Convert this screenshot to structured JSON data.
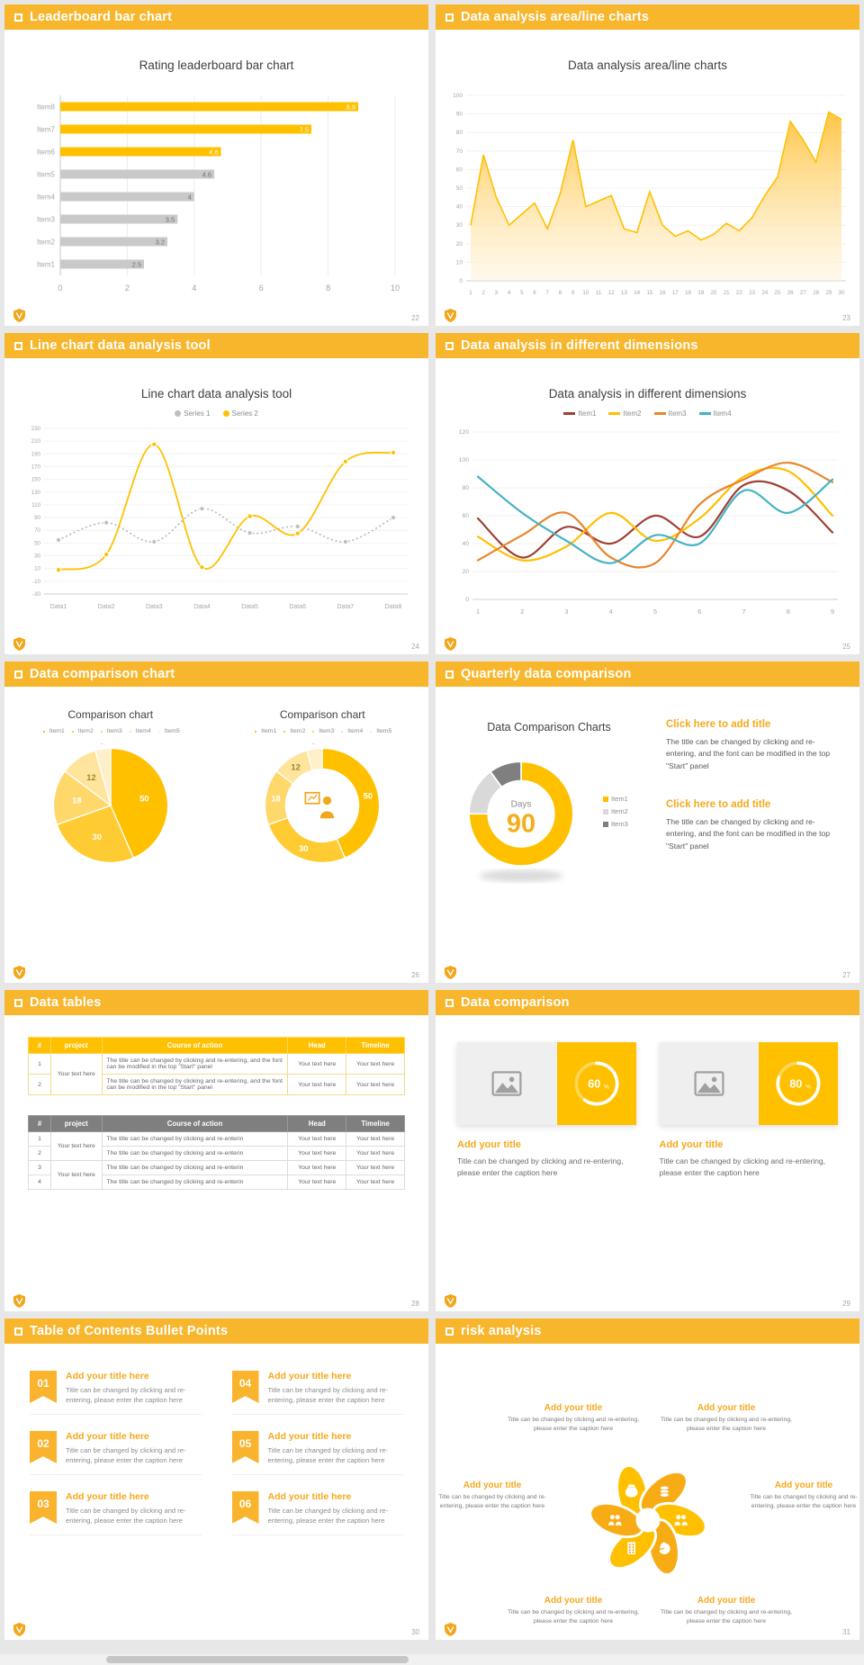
{
  "colors": {
    "accent": "#F8B62D",
    "accent_dark": "#F2A71B",
    "chart_yellow": "#FFC000",
    "bar_gray": "#C9C9C9",
    "dark_gray": "#7F7F7F",
    "light_gray": "#D9D9D9"
  },
  "slides": [
    {
      "header": "Leaderboard bar chart",
      "page_num": "22",
      "title": "Rating leaderboard bar chart",
      "chart_data": {
        "type": "bar",
        "orientation": "horizontal",
        "categories": [
          "Item1",
          "Item2",
          "Item3",
          "Item4",
          "Item5",
          "Item6",
          "Item7",
          "Item8"
        ],
        "values": [
          2.5,
          3.2,
          3.5,
          4,
          4.6,
          4.8,
          7.5,
          8.9
        ],
        "colors": [
          "#C9C9C9",
          "#C9C9C9",
          "#C9C9C9",
          "#C9C9C9",
          "#C9C9C9",
          "#FFC000",
          "#FFC000",
          "#FFC000"
        ],
        "xlim": [
          0,
          10
        ],
        "xticks": [
          0,
          2,
          4,
          6,
          8,
          10
        ]
      }
    },
    {
      "header": "Data analysis area/line charts",
      "page_num": "23",
      "title": "Data analysis area/line charts",
      "chart_data": {
        "type": "area",
        "x": [
          1,
          2,
          3,
          4,
          5,
          6,
          7,
          8,
          9,
          10,
          11,
          12,
          13,
          14,
          15,
          16,
          17,
          18,
          19,
          20,
          21,
          22,
          23,
          24,
          25,
          26,
          27,
          28,
          29,
          30
        ],
        "values": [
          30,
          68,
          45,
          30,
          36,
          42,
          28,
          47,
          76,
          40,
          43,
          46,
          28,
          26,
          48,
          30,
          24,
          27,
          22,
          25,
          31,
          27,
          34,
          46,
          56,
          86,
          76,
          64,
          91,
          87
        ],
        "ylim": [
          0,
          100
        ],
        "ytick_step": 10,
        "color": "#FFC000"
      }
    },
    {
      "header": "Line chart data analysis tool",
      "page_num": "24",
      "title": "Line chart data analysis tool",
      "chart_data": {
        "type": "line",
        "categories": [
          "Data1",
          "Data2",
          "Data3",
          "Data4",
          "Data5",
          "Data6",
          "Data7",
          "Data8"
        ],
        "series": [
          {
            "name": "Series 1",
            "color": "#BFBFBF",
            "dashed": true,
            "values": [
              55,
              82,
              52,
              104,
              66,
              76,
              52,
              90
            ]
          },
          {
            "name": "Series 2",
            "color": "#FFC000",
            "dashed": false,
            "values": [
              8,
              32,
              205,
              12,
              92,
              65,
              178,
              192
            ]
          }
        ],
        "ylim": [
          -30,
          230
        ],
        "ytick_step": 20
      }
    },
    {
      "header": "Data analysis in different dimensions",
      "page_num": "25",
      "title": "Data analysis in different dimensions",
      "chart_data": {
        "type": "line",
        "x": [
          1,
          2,
          3,
          4,
          5,
          6,
          7,
          8,
          9
        ],
        "series": [
          {
            "name": "Item1",
            "color": "#9E4035",
            "values": [
              58,
              30,
              52,
              40,
              60,
              45,
              82,
              78,
              48
            ]
          },
          {
            "name": "Item2",
            "color": "#FFC000",
            "values": [
              45,
              28,
              38,
              62,
              42,
              58,
              88,
              92,
              60
            ]
          },
          {
            "name": "Item3",
            "color": "#E8862C",
            "values": [
              28,
              46,
              62,
              30,
              26,
              68,
              86,
              98,
              84
            ]
          },
          {
            "name": "Item4",
            "color": "#44B3C2",
            "values": [
              88,
              62,
              42,
              26,
              46,
              40,
              78,
              62,
              86
            ]
          }
        ],
        "ylim": [
          0,
          120
        ],
        "ytick_step": 20
      }
    },
    {
      "header": "Data comparison chart",
      "page_num": "26",
      "left_title": "Comparison chart",
      "right_title": "Comparison chart",
      "chart_data": {
        "type": "pie",
        "labels": [
          "Item1",
          "Item2",
          "Item3",
          "Item4",
          "Item5"
        ],
        "values": [
          50,
          30,
          18,
          12,
          5
        ],
        "colors": [
          "#FFC000",
          "#FFCB33",
          "#FFD86B",
          "#FFE49C",
          "#FFF0C9"
        ]
      }
    },
    {
      "header": "Quarterly data comparison",
      "page_num": "27",
      "title": "Data Comparison Charts",
      "chart_data": {
        "type": "pie",
        "center_label": "Days",
        "center_value": "90",
        "labels": [
          "Item1",
          "Item2",
          "Item3"
        ],
        "values": [
          75,
          15,
          10
        ],
        "colors": [
          "#FFC000",
          "#D9D9D9",
          "#7F7F7F"
        ]
      },
      "blocks": [
        {
          "title": "Click here to add title",
          "body": "The title can be changed by clicking and re-entering, and the font can be modified in the top \"Start\" panel"
        },
        {
          "title": "Click here to add title",
          "body": "The title can be changed by clicking and re-entering, and the font can be modified in the top \"Start\" panel"
        }
      ]
    },
    {
      "header": "Data tables",
      "page_num": "28",
      "table1": {
        "columns": [
          "#",
          "project",
          "Course of action",
          "Head",
          "Timeline"
        ],
        "project_label": "Your text here",
        "rows": [
          {
            "num": "1",
            "action": "The title can be changed by clicking and re-entering, and the font can be modified in the top \"Start\" panel",
            "head": "Your text here",
            "timeline": "Your text here"
          },
          {
            "num": "2",
            "action": "The title can be changed by clicking and re-entering, and the font can be modified in the top \"Start\" panel",
            "head": "Your text here",
            "timeline": "Your text here"
          }
        ]
      },
      "table2": {
        "columns": [
          "#",
          "project",
          "Course of action",
          "Head",
          "Timeline"
        ],
        "group_label": "Your text here",
        "rows": [
          {
            "num": "1",
            "action": "The title can be changed by clicking and re-enterin",
            "head": "Your text here",
            "timeline": "Your text here"
          },
          {
            "num": "2",
            "action": "The title can be changed by clicking and re-enterin",
            "head": "Your text here",
            "timeline": "Your text here"
          },
          {
            "num": "3",
            "action": "The title can be changed by clicking and re-enterin",
            "head": "Your text here",
            "timeline": "Your text here"
          },
          {
            "num": "4",
            "action": "The title can be changed by clicking and re-enterin",
            "head": "Your text here",
            "timeline": "Your text here"
          }
        ]
      }
    },
    {
      "header": "Data comparison",
      "page_num": "29",
      "cards": [
        {
          "percent": 60,
          "percent_label": "60",
          "title": "Add your title",
          "body": "Title can be changed by clicking and re-entering, please enter the caption here"
        },
        {
          "percent": 80,
          "percent_label": "80",
          "title": "Add your title",
          "body": "Title can be changed by clicking and re-entering, please enter the caption here"
        }
      ]
    },
    {
      "header": "Table of Contents Bullet Points",
      "page_num": "30",
      "items": [
        {
          "num": "01",
          "title": "Add your title here",
          "body": "Title can be changed by clicking and re-entering, please enter the caption here"
        },
        {
          "num": "02",
          "title": "Add your title here",
          "body": "Title can be changed by clicking and re-entering, please enter the caption here"
        },
        {
          "num": "03",
          "title": "Add your title here",
          "body": "Title can be changed by clicking and re-entering, please enter the caption here"
        },
        {
          "num": "04",
          "title": "Add your title here",
          "body": "Title can be changed by clicking and re-entering, please enter the caption here"
        },
        {
          "num": "05",
          "title": "Add your title here",
          "body": "Title can be changed by clicking and re-entering, please enter the caption here"
        },
        {
          "num": "06",
          "title": "Add your title here",
          "body": "Title can be changed by clicking and re-entering, please enter the caption here"
        }
      ]
    },
    {
      "header": "risk analysis",
      "page_num": "31",
      "icons": [
        "money-bag",
        "coins",
        "users",
        "pie-chart",
        "building",
        "users"
      ],
      "items": [
        {
          "title": "Add your title",
          "body": "Title can be changed by clicking and re-entering, please enter the caption here"
        },
        {
          "title": "Add your title",
          "body": "Title can be changed by clicking and re-entering, please enter the caption here"
        },
        {
          "title": "Add your title",
          "body": "Title can be changed by clicking and re-entering, please enter the caption here"
        },
        {
          "title": "Add your title",
          "body": "Title can be changed by clicking and re-entering, please enter the caption here"
        },
        {
          "title": "Add your title",
          "body": "Title can be changed by clicking and re-entering, please enter the caption here"
        },
        {
          "title": "Add your title",
          "body": "Title can be changed by clicking and re-entering, please enter the caption here"
        }
      ]
    }
  ]
}
